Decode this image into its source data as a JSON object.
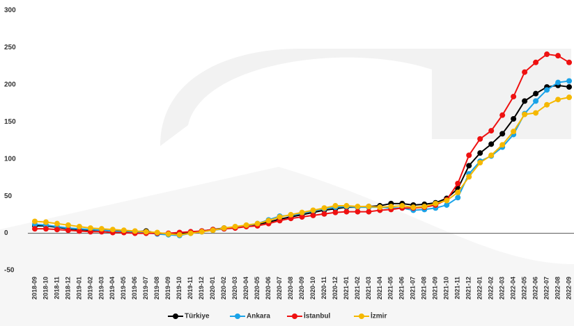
{
  "chart_data": {
    "type": "line",
    "categories": [
      "2018-09",
      "2018-10",
      "2018-11",
      "2018-12",
      "2019-01",
      "2019-02",
      "2019-03",
      "2019-04",
      "2019-05",
      "2019-06",
      "2019-07",
      "2019-08",
      "2019-09",
      "2019-10",
      "2019-11",
      "2019-12",
      "2020-01",
      "2020-02",
      "2020-03",
      "2020-04",
      "2020-05",
      "2020-06",
      "2020-07",
      "2020-08",
      "2020-09",
      "2020-10",
      "2020-11",
      "2020-12",
      "2021-01",
      "2021-02",
      "2021-03",
      "2021-04",
      "2021-05",
      "2021-06",
      "2021-07",
      "2021-08",
      "2021-09",
      "2021-10",
      "2021-11",
      "2021-12",
      "2022-01",
      "2022-02",
      "2022-03",
      "2022-04",
      "2022-05",
      "2022-06",
      "2022-07",
      "2022-08",
      "2022-09"
    ],
    "series": [
      {
        "name": "Türkiye",
        "color": "#000000",
        "values": [
          10,
          10,
          8,
          6,
          5,
          4,
          4,
          3,
          3,
          2,
          3,
          0,
          -1,
          -1,
          1,
          3,
          5,
          7,
          8,
          10,
          12,
          15,
          19,
          22,
          25,
          28,
          31,
          33,
          35,
          35,
          36,
          37,
          40,
          40,
          38,
          39,
          41,
          47,
          60,
          91,
          108,
          120,
          134,
          154,
          178,
          188,
          197,
          199,
          197
        ]
      },
      {
        "name": "Ankara",
        "color": "#1aa3e8",
        "values": [
          12,
          11,
          9,
          7,
          6,
          5,
          4,
          3,
          2,
          1,
          1,
          -1,
          -2,
          -3,
          0,
          2,
          4,
          6,
          8,
          10,
          13,
          18,
          23,
          24,
          27,
          30,
          33,
          35,
          36,
          35,
          35,
          35,
          34,
          34,
          31,
          32,
          34,
          38,
          48,
          80,
          97,
          104,
          116,
          133,
          161,
          178,
          193,
          203,
          205
        ]
      },
      {
        "name": "İstanbul",
        "color": "#ee1111",
        "values": [
          6,
          6,
          5,
          4,
          3,
          2,
          2,
          1,
          1,
          0,
          0,
          0,
          0,
          1,
          2,
          3,
          5,
          6,
          7,
          9,
          10,
          13,
          17,
          20,
          22,
          24,
          26,
          28,
          29,
          29,
          29,
          31,
          32,
          34,
          34,
          35,
          38,
          45,
          67,
          105,
          127,
          138,
          159,
          184,
          217,
          230,
          241,
          239,
          230
        ]
      },
      {
        "name": "İzmir",
        "color": "#f5b800",
        "values": [
          16,
          15,
          13,
          11,
          9,
          7,
          6,
          5,
          4,
          3,
          2,
          1,
          -1,
          -2,
          0,
          2,
          4,
          7,
          9,
          11,
          13,
          17,
          22,
          25,
          28,
          31,
          34,
          37,
          37,
          36,
          36,
          35,
          36,
          37,
          35,
          36,
          40,
          44,
          55,
          76,
          95,
          105,
          119,
          137,
          160,
          162,
          173,
          180,
          183
        ]
      }
    ],
    "ylim": [
      -50,
      300
    ],
    "yticks": [
      -50,
      0,
      50,
      100,
      150,
      200,
      250,
      300
    ]
  }
}
